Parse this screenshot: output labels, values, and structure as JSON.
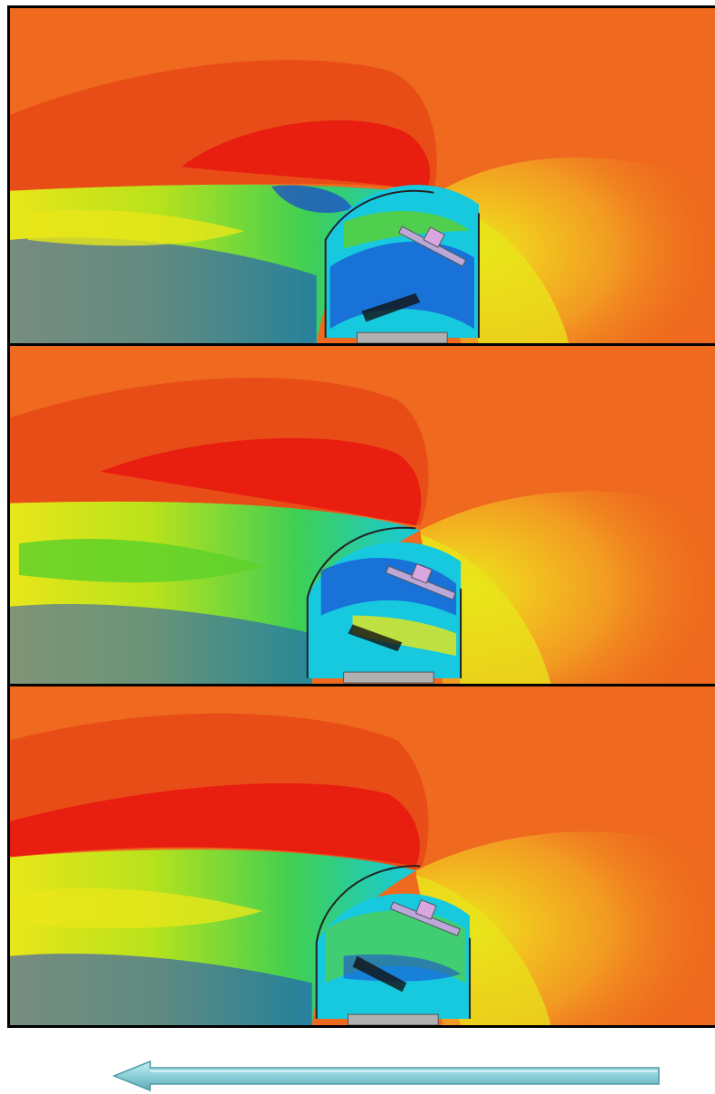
{
  "figure": {
    "panels": [
      {
        "name": "cfd-contour-panel-1",
        "dome_slit": "open-wide"
      },
      {
        "name": "cfd-contour-panel-2",
        "dome_slit": "open"
      },
      {
        "name": "cfd-contour-panel-3",
        "dome_slit": "narrow"
      }
    ],
    "colors": {
      "ambient": "#ef6a1e",
      "high": "#e81e10",
      "warm": "#f29a22",
      "yellow": "#e8e619",
      "green": "#5fd12a",
      "cyan": "#16c9df",
      "blue": "#1a43d4",
      "arrow_fill": "#8cd0da",
      "arrow_edge": "#4e9aa6"
    },
    "flow_arrow": {
      "direction": "left"
    }
  }
}
